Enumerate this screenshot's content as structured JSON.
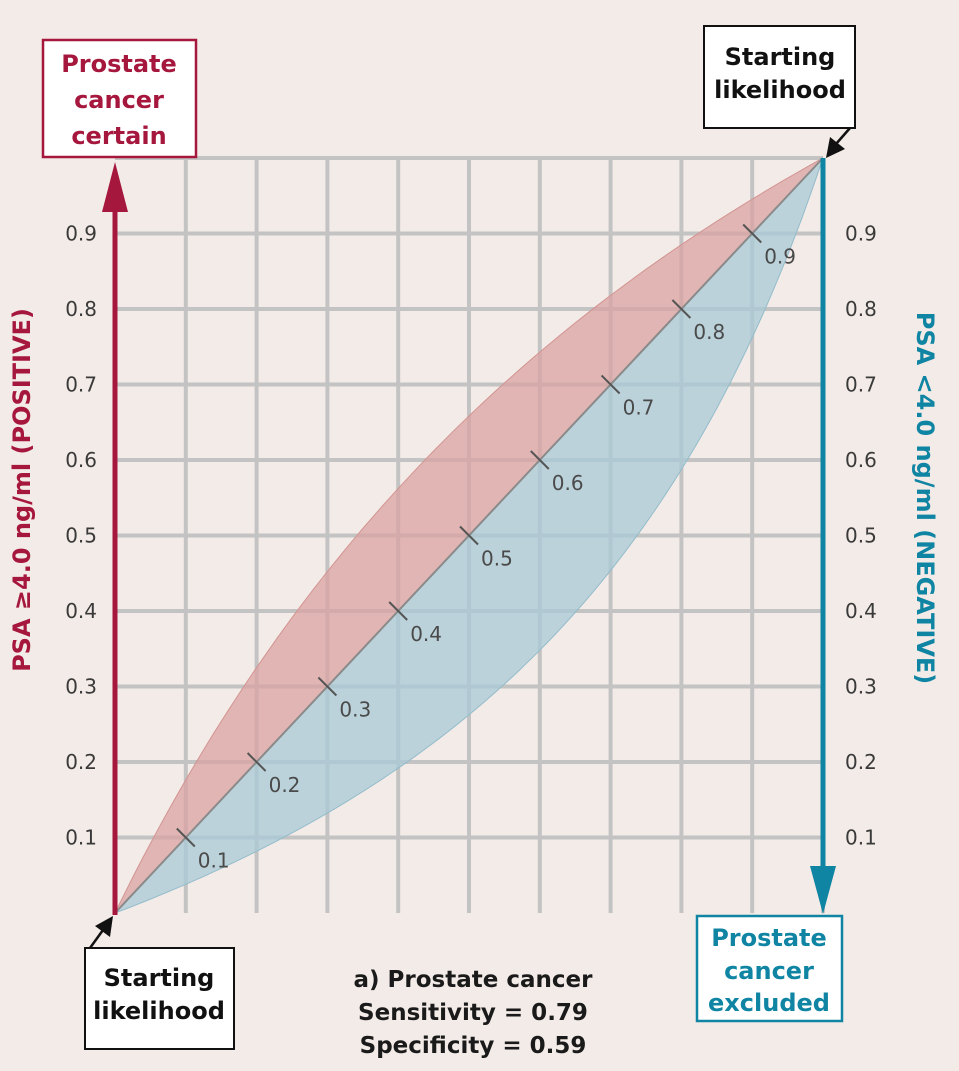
{
  "chart_data": {
    "type": "area",
    "caption": {
      "title": "a) Prostate cancer",
      "sensitivity": "Sensitivity = 0.79",
      "specificity": "Specificity = 0.59"
    },
    "y_ticks_left": [
      "0.1",
      "0.2",
      "0.3",
      "0.4",
      "0.5",
      "0.6",
      "0.7",
      "0.8",
      "0.9"
    ],
    "y_ticks_right": [
      "0.1",
      "0.2",
      "0.3",
      "0.4",
      "0.5",
      "0.6",
      "0.7",
      "0.8",
      "0.9"
    ],
    "diagonal_labels": [
      "0.1",
      "0.2",
      "0.3",
      "0.4",
      "0.5",
      "0.6",
      "0.7",
      "0.8",
      "0.9"
    ],
    "ylim": [
      0,
      1
    ],
    "xlim": [
      0,
      1
    ],
    "grid": true,
    "left_axis_label": "PSA ≥4.0 ng/ml (POSITIVE)",
    "right_axis_label": "PSA <4.0 ng/ml (NEGATIVE)",
    "boxes": {
      "top_left": [
        "Prostate",
        "cancer",
        "certain"
      ],
      "top_right": [
        "Starting",
        "likelihood"
      ],
      "bottom_left": [
        "Starting",
        "likelihood"
      ],
      "bottom_right": [
        "Prostate",
        "cancer",
        "excluded"
      ]
    },
    "series": [
      {
        "name": "",
        "type": "post-test probability (positive)",
        "sensitivity": 0.79,
        "specificity": 0.59,
        "color": "#d9a3a1"
      },
      {
        "name": "",
        "type": "post-test probability (negative)",
        "sensitivity": 0.79,
        "specificity": 0.59,
        "color": "#a8c9d6"
      }
    ],
    "colors": {
      "positive": "#a6173d",
      "negative": "#0f85a3",
      "grid": "#c3c3c3",
      "diagonal": "#8a8a8a"
    }
  }
}
